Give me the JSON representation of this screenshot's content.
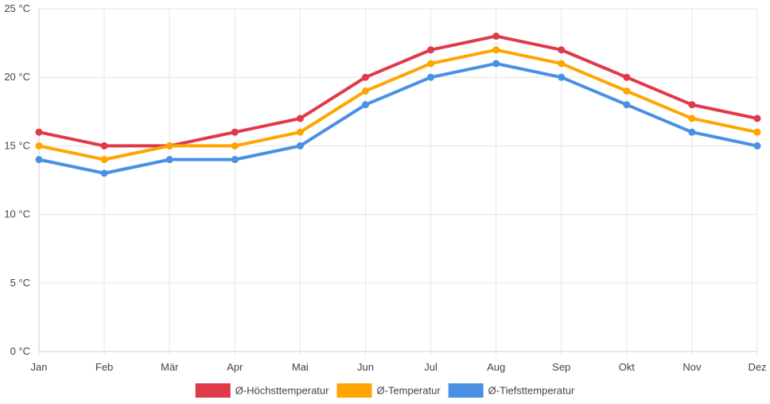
{
  "chart_data": {
    "type": "line",
    "categories": [
      "Jan",
      "Feb",
      "Mär",
      "Apr",
      "Mai",
      "Jun",
      "Jul",
      "Aug",
      "Sep",
      "Okt",
      "Nov",
      "Dez"
    ],
    "y_ticks": [
      0,
      5,
      10,
      15,
      20,
      25
    ],
    "y_unit": " °C",
    "ylim": [
      0,
      25
    ],
    "grid": true,
    "legend_position": "bottom",
    "series": [
      {
        "name": "Ø-Höchsttemperatur",
        "color": "#e0394a",
        "values": [
          16,
          15,
          15,
          16,
          17,
          20,
          22,
          23,
          22,
          20,
          18,
          17
        ]
      },
      {
        "name": "Ø-Temperatur",
        "color": "#ffa500",
        "values": [
          15,
          14,
          15,
          15,
          16,
          19,
          21,
          22,
          21,
          19,
          17,
          16
        ]
      },
      {
        "name": "Ø-Tiefsttemperatur",
        "color": "#4a90e2",
        "values": [
          14,
          13,
          14,
          14,
          15,
          18,
          20,
          21,
          20,
          18,
          16,
          15
        ]
      }
    ]
  }
}
